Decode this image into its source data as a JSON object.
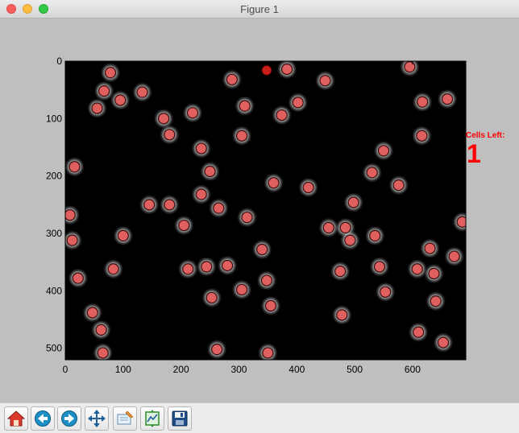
{
  "window": {
    "title": "Figure 1"
  },
  "annotation": {
    "label": "Cells Left:",
    "count": "1",
    "color": "#ff0000"
  },
  "chart_data": {
    "type": "scatter",
    "title": "",
    "xlabel": "",
    "ylabel": "",
    "xlim": [
      0,
      692
    ],
    "ylim": [
      520,
      0
    ],
    "x_ticks": [
      "0",
      "100",
      "200",
      "300",
      "400",
      "500",
      "600"
    ],
    "y_ticks": [
      "0",
      "100",
      "200",
      "300",
      "400",
      "500"
    ],
    "background": "#000000",
    "cell_color": "#e06060",
    "cells": [
      [
        78,
        20
      ],
      [
        67,
        52
      ],
      [
        55,
        82
      ],
      [
        95,
        68
      ],
      [
        133,
        54
      ],
      [
        288,
        32
      ],
      [
        383,
        14
      ],
      [
        449,
        34
      ],
      [
        595,
        10
      ],
      [
        617,
        71
      ],
      [
        660,
        66
      ],
      [
        310,
        78
      ],
      [
        402,
        72
      ],
      [
        374,
        94
      ],
      [
        170,
        100
      ],
      [
        220,
        90
      ],
      [
        180,
        128
      ],
      [
        305,
        130
      ],
      [
        616,
        130
      ],
      [
        235,
        152
      ],
      [
        550,
        156
      ],
      [
        16,
        184
      ],
      [
        250,
        192
      ],
      [
        360,
        212
      ],
      [
        420,
        220
      ],
      [
        530,
        194
      ],
      [
        576,
        216
      ],
      [
        235,
        232
      ],
      [
        498,
        246
      ],
      [
        145,
        250
      ],
      [
        180,
        250
      ],
      [
        265,
        256
      ],
      [
        314,
        272
      ],
      [
        8,
        268
      ],
      [
        686,
        280
      ],
      [
        205,
        286
      ],
      [
        455,
        290
      ],
      [
        484,
        290
      ],
      [
        492,
        312
      ],
      [
        535,
        304
      ],
      [
        12,
        312
      ],
      [
        100,
        304
      ],
      [
        340,
        328
      ],
      [
        630,
        326
      ],
      [
        672,
        340
      ],
      [
        212,
        362
      ],
      [
        244,
        358
      ],
      [
        280,
        356
      ],
      [
        83,
        362
      ],
      [
        543,
        358
      ],
      [
        475,
        366
      ],
      [
        608,
        362
      ],
      [
        637,
        370
      ],
      [
        22,
        378
      ],
      [
        348,
        382
      ],
      [
        305,
        398
      ],
      [
        553,
        402
      ],
      [
        253,
        412
      ],
      [
        355,
        426
      ],
      [
        640,
        418
      ],
      [
        47,
        438
      ],
      [
        478,
        442
      ],
      [
        62,
        468
      ],
      [
        610,
        472
      ],
      [
        653,
        490
      ],
      [
        65,
        508
      ],
      [
        262,
        502
      ],
      [
        350,
        508
      ]
    ],
    "highlighted_cell": [
      348,
      16
    ],
    "highlighted_color": "#c81e1e"
  },
  "toolbar": {
    "buttons": [
      {
        "name": "home",
        "icon": "home-icon"
      },
      {
        "name": "back",
        "icon": "back-arrow-icon"
      },
      {
        "name": "forward",
        "icon": "forward-arrow-icon"
      },
      {
        "name": "pan",
        "icon": "pan-arrows-icon"
      },
      {
        "name": "zoom",
        "icon": "zoom-rect-icon"
      },
      {
        "name": "configure",
        "icon": "configure-subplots-icon"
      },
      {
        "name": "save",
        "icon": "save-disk-icon"
      }
    ]
  }
}
